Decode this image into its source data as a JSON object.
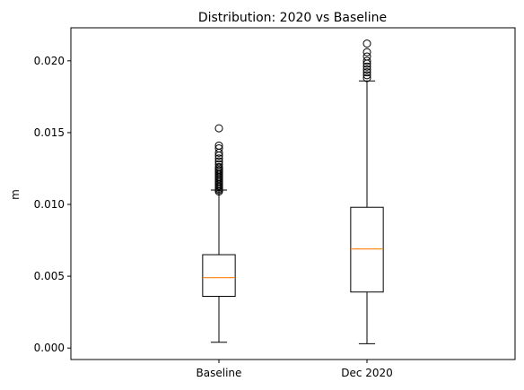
{
  "chart_data": {
    "type": "boxplot",
    "title": "Distribution: 2020 vs Baseline",
    "xlabel": "",
    "ylabel": "m",
    "ylim": [
      -0.0008,
      0.0223
    ],
    "yticks": [
      0.0,
      0.005,
      0.01,
      0.015,
      0.02
    ],
    "ytick_labels": [
      "0.000",
      "0.005",
      "0.010",
      "0.015",
      "0.020"
    ],
    "categories": [
      "Baseline",
      "Dec 2020"
    ],
    "median_color": "#ff7f0e",
    "boxes": [
      {
        "label": "Baseline",
        "whisker_low": 0.0004,
        "q1": 0.0036,
        "median": 0.0049,
        "q3": 0.0065,
        "whisker_high": 0.011,
        "outliers": [
          0.0109,
          0.011,
          0.0111,
          0.0112,
          0.0113,
          0.0114,
          0.0115,
          0.0116,
          0.0117,
          0.0118,
          0.0119,
          0.012,
          0.0121,
          0.0122,
          0.0123,
          0.0124,
          0.0125,
          0.0126,
          0.0128,
          0.013,
          0.0132,
          0.0134,
          0.0136,
          0.0139,
          0.0141,
          0.0153
        ]
      },
      {
        "label": "Dec 2020",
        "whisker_low": 0.0003,
        "q1": 0.0039,
        "median": 0.0069,
        "q3": 0.0098,
        "whisker_high": 0.0186,
        "outliers": [
          0.0188,
          0.019,
          0.0192,
          0.0194,
          0.0196,
          0.0198,
          0.02,
          0.0203,
          0.0206,
          0.0212
        ]
      }
    ],
    "grid": false,
    "legend": "none"
  }
}
